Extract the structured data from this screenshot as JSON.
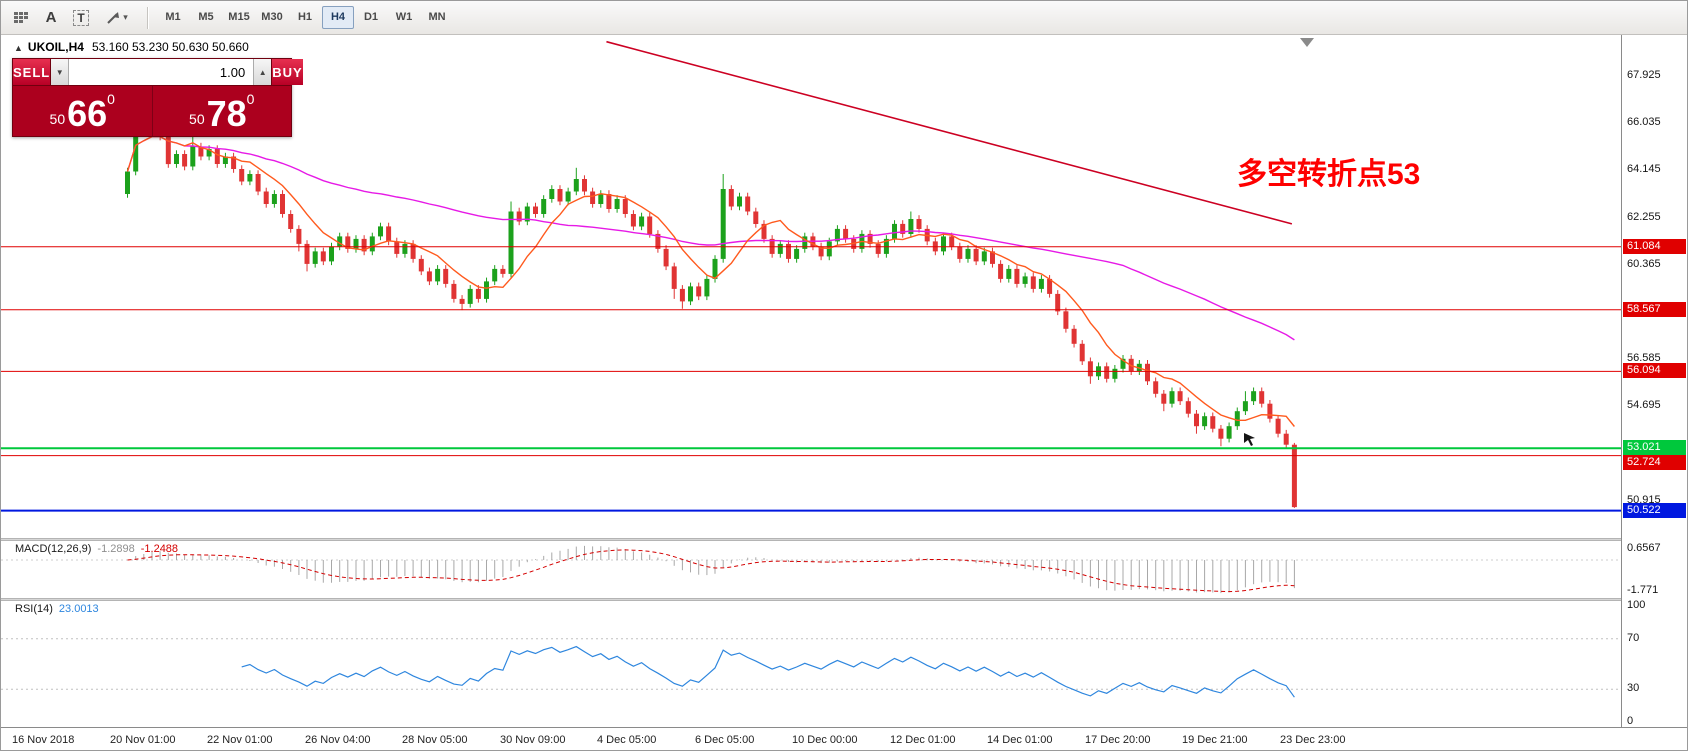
{
  "toolbar": {
    "icon_a": "A",
    "icon_t": "T",
    "caret_icon": "▾",
    "timeframes": [
      "M1",
      "M5",
      "M15",
      "M30",
      "H1",
      "H4",
      "D1",
      "W1",
      "MN"
    ],
    "active_timeframe": "H4"
  },
  "trade_panel": {
    "sell_label": "SELL",
    "buy_label": "BUY",
    "volume": "1.00",
    "spin_down_icon": "▼",
    "spin_up_icon": "▲",
    "bid": {
      "prefix": "50",
      "big": "66",
      "sup": "0"
    },
    "ask": {
      "prefix": "50",
      "big": "78",
      "sup": "0"
    }
  },
  "chart": {
    "collapse_icon": "▲",
    "symbol_title": "UKOIL,H4",
    "ohlc_text": "53.160 53.230 50.630 50.660",
    "annotation": {
      "text": "多空转折点53",
      "color": "#fe0000"
    },
    "axis_ticks": [
      {
        "label": "67.925",
        "price": 67.925
      },
      {
        "label": "66.035",
        "price": 66.035
      },
      {
        "label": "64.145",
        "price": 64.145
      },
      {
        "label": "62.255",
        "price": 62.255
      },
      {
        "label": "60.365",
        "price": 60.365
      },
      {
        "label": "56.585",
        "price": 56.585
      },
      {
        "label": "54.695",
        "price": 54.695
      },
      {
        "label": "50.915",
        "price": 50.915
      }
    ],
    "hlines": [
      {
        "price": 61.084,
        "label": "61.084",
        "color": "#e00000",
        "width": 1
      },
      {
        "price": 58.567,
        "label": "58.567",
        "color": "#e00000",
        "width": 1
      },
      {
        "price": 56.094,
        "label": "56.094",
        "color": "#e00000",
        "width": 1
      },
      {
        "price": 53.021,
        "label": "53.021",
        "color": "#00c83c",
        "width": 2
      },
      {
        "price": 52.724,
        "label": "52.724",
        "color": "#e00000",
        "width": 1
      },
      {
        "price": 50.522,
        "label": "50.522",
        "color": "#0018e0",
        "width": 2
      }
    ]
  },
  "macd": {
    "label": "MACD(12,26,9)",
    "value_main": "-1.2898",
    "value_signal": "-1.2488",
    "scale_top": "0.6567",
    "scale_bottom": "-1.771"
  },
  "rsi": {
    "label": "RSI(14)",
    "value": "23.0013",
    "scale": [
      {
        "label": "100",
        "value": 100
      },
      {
        "label": "70",
        "value": 70
      },
      {
        "label": "30",
        "value": 30
      },
      {
        "label": "0",
        "value": 0
      }
    ],
    "levels": [
      70,
      30
    ]
  },
  "time_axis": [
    "16 Nov 2018",
    "20 Nov 01:00",
    "22 Nov 01:00",
    "26 Nov 04:00",
    "28 Nov 05:00",
    "30 Nov 09:00",
    "4 Dec 05:00",
    "6 Dec 05:00",
    "10 Dec 00:00",
    "12 Dec 01:00",
    "14 Dec 01:00",
    "17 Dec 20:00",
    "19 Dec 21:00",
    "23 Dec 23:00"
  ],
  "chart_data": {
    "type": "candlestick",
    "symbol": "UKOIL",
    "period": "H4",
    "title": "UKOIL,H4 53.160 53.230 50.630 50.660",
    "ohlc_current": {
      "open": 53.16,
      "high": 53.23,
      "low": 50.63,
      "close": 50.66
    },
    "y_axis_range": [
      49.4,
      69.5
    ],
    "up_color": "#1ca11c",
    "down_color": "#e03434",
    "moving_averages": [
      {
        "period": 50,
        "color": "#e61ae6"
      },
      {
        "period": 8,
        "color": "#ff5a1e"
      }
    ],
    "trend_line": {
      "i1": 59,
      "p1": 69.3,
      "i2": 143,
      "p2": 62.0,
      "color": "#cc0022"
    },
    "indicators": [
      {
        "name": "MACD",
        "params": [
          12,
          26,
          9
        ],
        "current": [
          -1.2898,
          -1.2488
        ]
      },
      {
        "name": "RSI",
        "params": [
          14
        ],
        "current": 23.0013
      }
    ],
    "candles": [
      [
        63.2,
        64.25,
        63.05,
        64.1
      ],
      [
        64.1,
        66.85,
        63.95,
        66.2
      ],
      [
        66.2,
        66.35,
        65.55,
        65.7
      ],
      [
        65.7,
        66.15,
        65.55,
        66.0
      ],
      [
        66.0,
        66.15,
        65.35,
        65.5
      ],
      [
        65.5,
        65.65,
        64.25,
        64.4
      ],
      [
        64.4,
        64.95,
        64.25,
        64.8
      ],
      [
        64.8,
        64.95,
        64.15,
        64.3
      ],
      [
        64.3,
        65.6,
        64.15,
        65.1
      ],
      [
        65.1,
        65.25,
        64.55,
        64.7
      ],
      [
        64.7,
        65.15,
        64.55,
        65.0
      ],
      [
        65.0,
        65.15,
        64.25,
        64.4
      ],
      [
        64.4,
        64.85,
        64.25,
        64.7
      ],
      [
        64.7,
        64.85,
        64.05,
        64.2
      ],
      [
        64.2,
        64.35,
        63.55,
        63.7
      ],
      [
        63.7,
        64.15,
        63.55,
        64.0
      ],
      [
        64.0,
        64.15,
        63.15,
        63.3
      ],
      [
        63.3,
        63.45,
        62.65,
        62.8
      ],
      [
        62.8,
        63.35,
        62.65,
        63.2
      ],
      [
        63.2,
        63.35,
        62.25,
        62.4
      ],
      [
        62.4,
        62.55,
        61.65,
        61.8
      ],
      [
        61.8,
        61.95,
        60.9,
        61.2
      ],
      [
        61.2,
        61.35,
        60.1,
        60.4
      ],
      [
        60.4,
        61.05,
        60.25,
        60.9
      ],
      [
        60.9,
        61.05,
        60.35,
        60.5
      ],
      [
        60.5,
        61.25,
        60.35,
        61.1
      ],
      [
        61.1,
        61.65,
        60.95,
        61.5
      ],
      [
        61.5,
        61.65,
        60.85,
        61.0
      ],
      [
        61.0,
        61.55,
        60.85,
        61.4
      ],
      [
        61.4,
        61.55,
        60.75,
        60.9
      ],
      [
        60.9,
        61.65,
        60.75,
        61.5
      ],
      [
        61.5,
        62.05,
        61.35,
        61.9
      ],
      [
        61.9,
        62.05,
        61.15,
        61.3
      ],
      [
        61.3,
        61.45,
        60.65,
        60.8
      ],
      [
        60.8,
        61.35,
        60.65,
        61.2
      ],
      [
        61.2,
        61.35,
        60.45,
        60.6
      ],
      [
        60.6,
        60.75,
        59.95,
        60.1
      ],
      [
        60.1,
        60.25,
        59.55,
        59.7
      ],
      [
        59.7,
        60.35,
        59.55,
        60.2
      ],
      [
        60.2,
        60.35,
        59.45,
        59.6
      ],
      [
        59.6,
        59.75,
        58.85,
        59.0
      ],
      [
        59.0,
        59.15,
        58.55,
        58.8
      ],
      [
        58.8,
        59.55,
        58.65,
        59.4
      ],
      [
        59.4,
        59.55,
        58.85,
        59.0
      ],
      [
        59.0,
        59.85,
        58.85,
        59.7
      ],
      [
        59.7,
        60.35,
        59.55,
        60.2
      ],
      [
        60.2,
        60.35,
        59.85,
        60.0
      ],
      [
        60.0,
        62.9,
        59.85,
        62.5
      ],
      [
        62.5,
        62.65,
        61.95,
        62.1
      ],
      [
        62.1,
        62.85,
        61.95,
        62.7
      ],
      [
        62.7,
        62.85,
        62.25,
        62.4
      ],
      [
        62.4,
        63.15,
        62.25,
        63.0
      ],
      [
        63.0,
        63.55,
        62.85,
        63.4
      ],
      [
        63.4,
        63.55,
        62.75,
        62.9
      ],
      [
        62.9,
        63.45,
        62.75,
        63.3
      ],
      [
        63.3,
        64.25,
        63.15,
        63.8
      ],
      [
        63.8,
        63.95,
        63.15,
        63.3
      ],
      [
        63.3,
        63.45,
        62.65,
        62.8
      ],
      [
        62.8,
        63.35,
        62.65,
        63.2
      ],
      [
        63.2,
        63.35,
        62.45,
        62.6
      ],
      [
        62.6,
        63.15,
        62.45,
        63.0
      ],
      [
        63.0,
        63.15,
        62.25,
        62.4
      ],
      [
        62.4,
        62.55,
        61.75,
        61.9
      ],
      [
        61.9,
        62.45,
        61.75,
        62.3
      ],
      [
        62.3,
        62.45,
        61.45,
        61.6
      ],
      [
        61.6,
        61.75,
        60.85,
        61.0
      ],
      [
        61.0,
        61.15,
        60.15,
        60.3
      ],
      [
        60.3,
        60.45,
        59.0,
        59.4
      ],
      [
        59.4,
        59.55,
        58.6,
        58.9
      ],
      [
        58.9,
        59.65,
        58.75,
        59.5
      ],
      [
        59.5,
        59.65,
        58.95,
        59.1
      ],
      [
        59.1,
        59.95,
        58.95,
        59.8
      ],
      [
        59.8,
        60.75,
        59.65,
        60.6
      ],
      [
        60.6,
        64.0,
        60.45,
        63.4
      ],
      [
        63.4,
        63.55,
        62.55,
        62.7
      ],
      [
        62.7,
        63.25,
        62.55,
        63.1
      ],
      [
        63.1,
        63.25,
        62.35,
        62.5
      ],
      [
        62.5,
        62.65,
        61.85,
        62.0
      ],
      [
        62.0,
        62.15,
        61.25,
        61.4
      ],
      [
        61.4,
        61.55,
        60.65,
        60.8
      ],
      [
        60.8,
        61.35,
        60.65,
        61.2
      ],
      [
        61.2,
        61.35,
        60.45,
        60.6
      ],
      [
        60.6,
        61.15,
        60.45,
        61.0
      ],
      [
        61.0,
        61.65,
        60.85,
        61.5
      ],
      [
        61.5,
        61.65,
        60.95,
        61.1
      ],
      [
        61.1,
        61.25,
        60.55,
        60.7
      ],
      [
        60.7,
        61.45,
        60.55,
        61.3
      ],
      [
        61.3,
        61.95,
        61.15,
        61.8
      ],
      [
        61.8,
        61.95,
        61.25,
        61.4
      ],
      [
        61.4,
        61.55,
        60.85,
        61.0
      ],
      [
        61.0,
        61.75,
        60.85,
        61.6
      ],
      [
        61.6,
        61.75,
        61.05,
        61.2
      ],
      [
        61.2,
        61.35,
        60.65,
        60.8
      ],
      [
        60.8,
        61.55,
        60.65,
        61.4
      ],
      [
        61.4,
        62.15,
        61.25,
        62.0
      ],
      [
        62.0,
        62.15,
        61.45,
        61.6
      ],
      [
        61.6,
        62.5,
        61.45,
        62.2
      ],
      [
        62.2,
        62.35,
        61.65,
        61.8
      ],
      [
        61.8,
        61.95,
        61.15,
        61.3
      ],
      [
        61.3,
        61.45,
        60.75,
        60.9
      ],
      [
        60.9,
        61.65,
        60.75,
        61.5
      ],
      [
        61.5,
        61.65,
        60.95,
        61.1
      ],
      [
        61.1,
        61.25,
        60.45,
        60.6
      ],
      [
        60.6,
        61.15,
        60.45,
        61.0
      ],
      [
        61.0,
        61.15,
        60.35,
        60.5
      ],
      [
        60.5,
        61.05,
        60.35,
        60.9
      ],
      [
        60.9,
        61.05,
        60.25,
        60.4
      ],
      [
        60.4,
        60.55,
        59.65,
        59.8
      ],
      [
        59.8,
        60.35,
        59.65,
        60.2
      ],
      [
        60.2,
        60.35,
        59.45,
        59.6
      ],
      [
        59.6,
        60.05,
        59.45,
        59.9
      ],
      [
        59.9,
        60.05,
        59.25,
        59.4
      ],
      [
        59.4,
        59.95,
        59.25,
        59.8
      ],
      [
        59.8,
        59.95,
        59.05,
        59.2
      ],
      [
        59.2,
        59.35,
        58.35,
        58.5
      ],
      [
        58.5,
        58.65,
        57.65,
        57.8
      ],
      [
        57.8,
        57.95,
        57.05,
        57.2
      ],
      [
        57.2,
        57.35,
        56.35,
        56.5
      ],
      [
        56.5,
        56.65,
        55.6,
        55.9
      ],
      [
        55.9,
        56.45,
        55.75,
        56.3
      ],
      [
        56.3,
        56.45,
        55.65,
        55.8
      ],
      [
        55.8,
        56.35,
        55.65,
        56.2
      ],
      [
        56.2,
        56.75,
        56.05,
        56.6
      ],
      [
        56.6,
        56.75,
        55.95,
        56.1
      ],
      [
        56.1,
        56.55,
        55.95,
        56.4
      ],
      [
        56.4,
        56.55,
        55.55,
        55.7
      ],
      [
        55.7,
        55.85,
        55.05,
        55.2
      ],
      [
        55.2,
        55.35,
        54.5,
        54.8
      ],
      [
        54.8,
        55.45,
        54.65,
        55.3
      ],
      [
        55.3,
        55.45,
        54.75,
        54.9
      ],
      [
        54.9,
        55.05,
        54.25,
        54.4
      ],
      [
        54.4,
        54.55,
        53.6,
        53.9
      ],
      [
        53.9,
        54.45,
        53.75,
        54.3
      ],
      [
        54.3,
        54.45,
        53.65,
        53.8
      ],
      [
        53.8,
        53.95,
        53.1,
        53.4
      ],
      [
        53.4,
        54.05,
        53.25,
        53.9
      ],
      [
        53.9,
        54.65,
        53.75,
        54.5
      ],
      [
        54.5,
        55.3,
        54.35,
        54.9
      ],
      [
        54.9,
        55.45,
        54.75,
        55.3
      ],
      [
        55.3,
        55.45,
        54.65,
        54.8
      ],
      [
        54.8,
        54.95,
        54.05,
        54.2
      ],
      [
        54.2,
        54.35,
        53.45,
        53.6
      ],
      [
        53.6,
        53.75,
        53.0,
        53.16
      ],
      [
        53.16,
        53.23,
        50.63,
        50.66
      ]
    ]
  }
}
